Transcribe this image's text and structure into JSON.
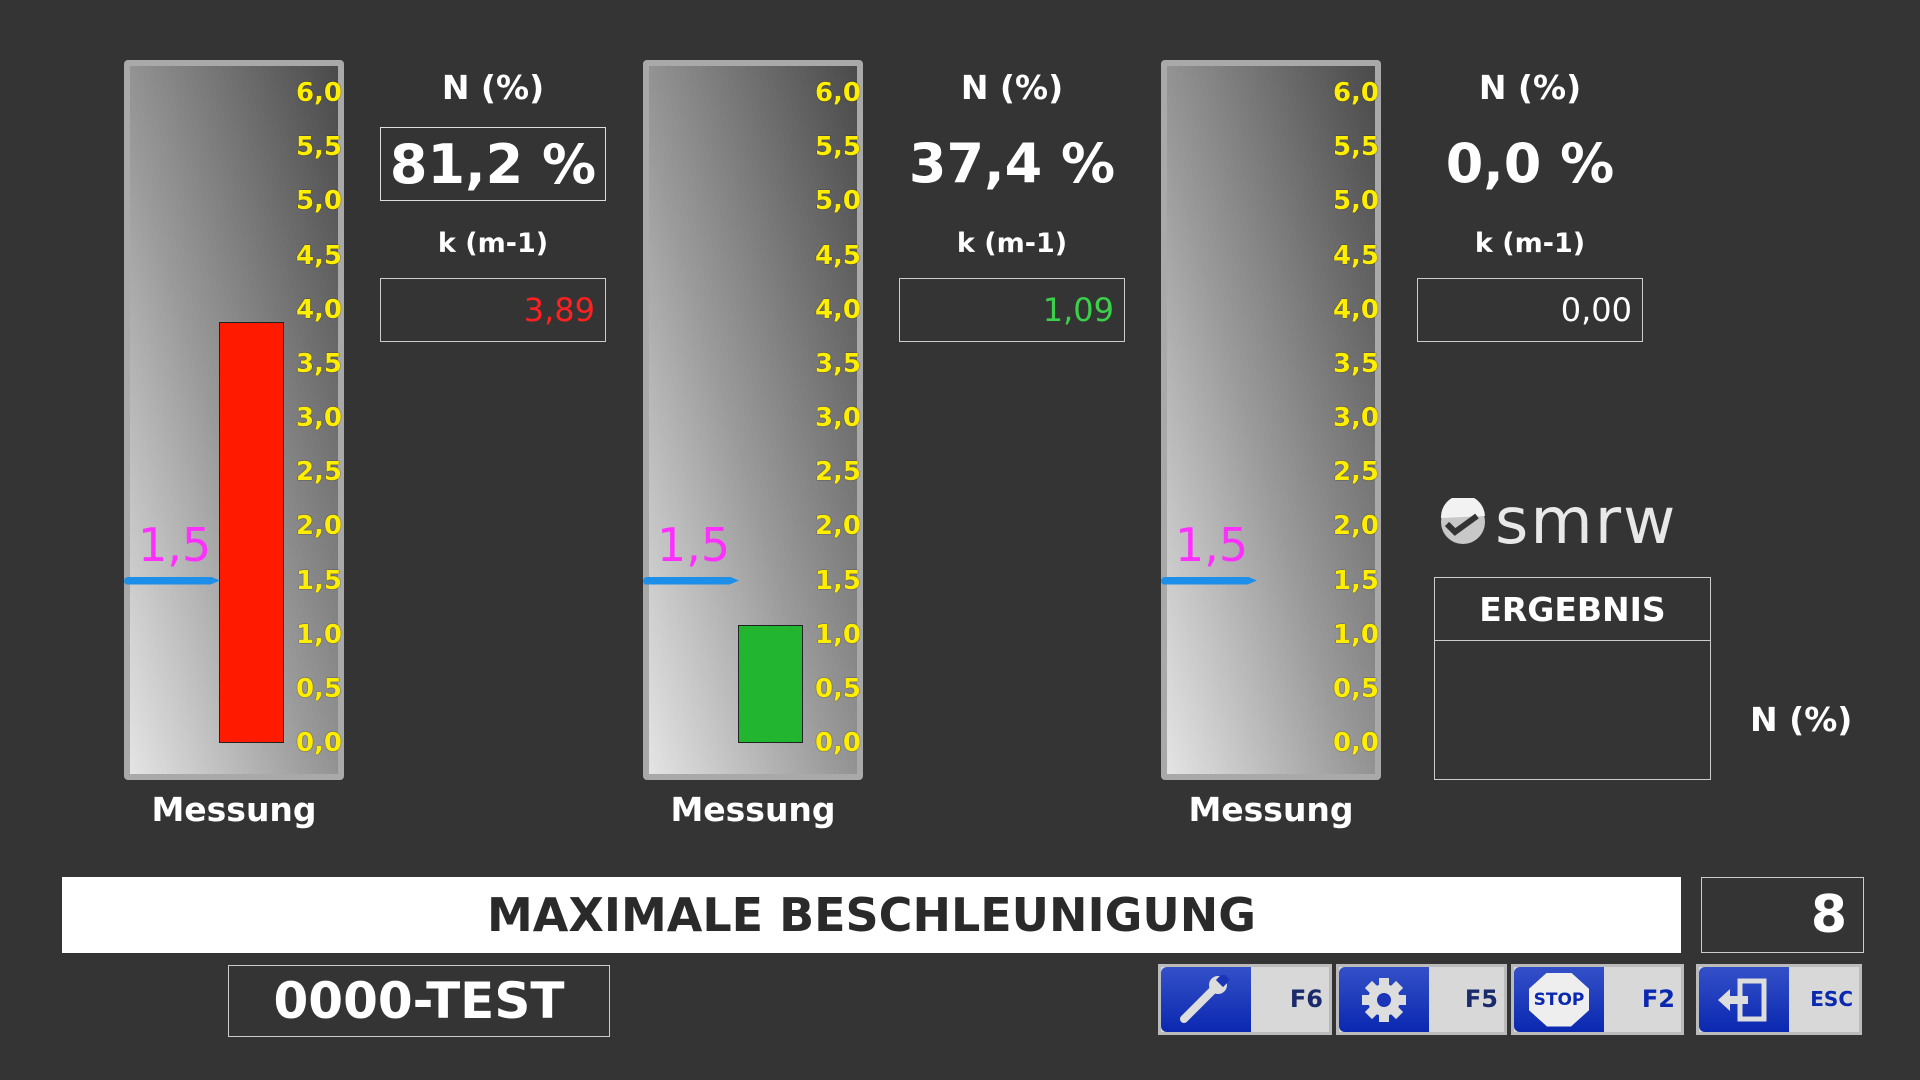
{
  "scale": {
    "min": 0,
    "max": 6,
    "ticks": [
      "6,0",
      "5,5",
      "5,0",
      "4,5",
      "4,0",
      "3,5",
      "3,0",
      "2,5",
      "2,0",
      "1,5",
      "1,0",
      "0,5",
      "0,0"
    ]
  },
  "gauges": [
    {
      "value": 3.89,
      "bar_color": "#ff1a00",
      "threshold": 1.5,
      "threshold_label": "1,5",
      "caption": "Messung",
      "n_label": "N (%)",
      "n_value": "81,2 %",
      "k_label": "k (m-1)",
      "k_value": "3,89",
      "k_color": "#ff2020"
    },
    {
      "value": 1.09,
      "bar_color": "#22b630",
      "threshold": 1.5,
      "threshold_label": "1,5",
      "caption": "Messung",
      "n_label": "N (%)",
      "n_value": "37,4 %",
      "k_label": "k (m-1)",
      "k_value": "1,09",
      "k_color": "#3ad04a"
    },
    {
      "value": 0,
      "bar_color": "#22b630",
      "threshold": 1.5,
      "threshold_label": "1,5",
      "caption": "Messung",
      "n_label": "N (%)",
      "n_value": "0,0 %",
      "k_label": "k (m-1)",
      "k_value": "0,00",
      "k_color": "#ffffff"
    }
  ],
  "logo": "smrw",
  "result": {
    "title": "ERGEBNIS",
    "value": "",
    "n_label": "N (%)"
  },
  "banner": "MAXIMALE BESCHLEUNIGUNG",
  "counter": "8",
  "test_id": "0000-TEST",
  "buttons": [
    {
      "icon": "wrench-icon",
      "key": "F6"
    },
    {
      "icon": "gear-icon",
      "key": "F5"
    },
    {
      "icon": "stop-icon",
      "key": "F2",
      "icon_text": "STOP"
    },
    {
      "icon": "exit-icon",
      "key": "ESC"
    }
  ]
}
